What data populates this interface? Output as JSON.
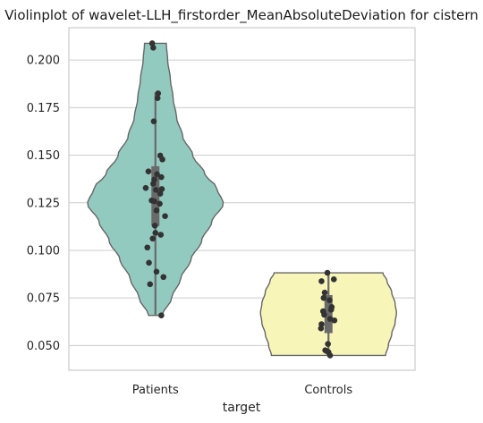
{
  "chart_data": {
    "type": "violin",
    "title": "Violinplot of wavelet-LLH_firstorder_MeanAbsoluteDeviation for cistern",
    "xlabel": "target",
    "ylabel": "",
    "categories": [
      "Patients",
      "Controls"
    ],
    "ylim": [
      0.037,
      0.217
    ],
    "yticks": [
      0.05,
      0.075,
      0.1,
      0.125,
      0.15,
      0.175,
      0.2
    ],
    "ytick_labels": [
      "0.050",
      "0.075",
      "0.100",
      "0.125",
      "0.150",
      "0.175",
      "0.200"
    ],
    "grid": true,
    "colors": {
      "Patients": "#93cac0",
      "Controls": "#f7f6b8",
      "outline": "#666666",
      "point": "#333333",
      "box": "#6a6a6a"
    },
    "groups": [
      {
        "name": "Patients",
        "color": "#93cac0",
        "range": [
          0.0658,
          0.2088
        ],
        "quartiles": [
          0.1128,
          0.1442
        ],
        "median": 0.13,
        "whiskers": [
          0.0658,
          0.183
        ],
        "density": [
          [
            0.0658,
            0.1
          ],
          [
            0.075,
            0.24
          ],
          [
            0.085,
            0.37
          ],
          [
            0.095,
            0.52
          ],
          [
            0.105,
            0.68
          ],
          [
            0.115,
            0.83
          ],
          [
            0.1245,
            1.0
          ],
          [
            0.133,
            0.9
          ],
          [
            0.14,
            0.73
          ],
          [
            0.15,
            0.55
          ],
          [
            0.16,
            0.4
          ],
          [
            0.17,
            0.31
          ],
          [
            0.18,
            0.26
          ],
          [
            0.19,
            0.22
          ],
          [
            0.2,
            0.18
          ],
          [
            0.2088,
            0.16
          ]
        ],
        "points": [
          {
            "y": 0.2088,
            "jitter": -0.06
          },
          {
            "y": 0.2065,
            "jitter": -0.04
          },
          {
            "y": 0.1825,
            "jitter": 0.05
          },
          {
            "y": 0.18,
            "jitter": 0.04
          },
          {
            "y": 0.1678,
            "jitter": -0.03
          },
          {
            "y": 0.1498,
            "jitter": 0.09
          },
          {
            "y": 0.1478,
            "jitter": 0.13
          },
          {
            "y": 0.1415,
            "jitter": -0.13
          },
          {
            "y": 0.14,
            "jitter": 0.03
          },
          {
            "y": 0.1385,
            "jitter": 0.11
          },
          {
            "y": 0.1372,
            "jitter": -0.02
          },
          {
            "y": 0.135,
            "jitter": -0.04
          },
          {
            "y": 0.1328,
            "jitter": -0.18
          },
          {
            "y": 0.1322,
            "jitter": 0.12
          },
          {
            "y": 0.1318,
            "jitter": 0.01
          },
          {
            "y": 0.1298,
            "jitter": 0.09
          },
          {
            "y": 0.1262,
            "jitter": -0.07
          },
          {
            "y": 0.1258,
            "jitter": -0.02
          },
          {
            "y": 0.1245,
            "jitter": 0.08
          },
          {
            "y": 0.121,
            "jitter": 0.02
          },
          {
            "y": 0.118,
            "jitter": 0.18
          },
          {
            "y": 0.113,
            "jitter": -0.01
          },
          {
            "y": 0.1092,
            "jitter": 0.0
          },
          {
            "y": 0.1082,
            "jitter": 0.1
          },
          {
            "y": 0.1062,
            "jitter": -0.05
          },
          {
            "y": 0.1015,
            "jitter": -0.15
          },
          {
            "y": 0.0935,
            "jitter": -0.12
          },
          {
            "y": 0.0888,
            "jitter": 0.02
          },
          {
            "y": 0.086,
            "jitter": 0.15
          },
          {
            "y": 0.0822,
            "jitter": -0.1
          },
          {
            "y": 0.0658,
            "jitter": 0.11
          }
        ]
      },
      {
        "name": "Controls",
        "color": "#f7f6b8",
        "range": [
          0.0448,
          0.0882
        ],
        "quartiles": [
          0.0565,
          0.0765
        ],
        "median": 0.067,
        "whiskers": [
          0.0448,
          0.0882
        ],
        "density": [
          [
            0.0448,
            0.84
          ],
          [
            0.05,
            0.88
          ],
          [
            0.056,
            0.93
          ],
          [
            0.062,
            0.98
          ],
          [
            0.0672,
            1.0
          ],
          [
            0.072,
            0.98
          ],
          [
            0.078,
            0.93
          ],
          [
            0.084,
            0.86
          ],
          [
            0.0882,
            0.8
          ]
        ],
        "points": [
          {
            "y": 0.0882,
            "jitter": -0.02
          },
          {
            "y": 0.0848,
            "jitter": 0.1
          },
          {
            "y": 0.0838,
            "jitter": -0.13
          },
          {
            "y": 0.0778,
            "jitter": -0.07
          },
          {
            "y": 0.075,
            "jitter": -0.09
          },
          {
            "y": 0.0738,
            "jitter": 0.02
          },
          {
            "y": 0.0702,
            "jitter": 0.06
          },
          {
            "y": 0.0688,
            "jitter": 0.05
          },
          {
            "y": 0.068,
            "jitter": -0.1
          },
          {
            "y": 0.0662,
            "jitter": -0.08
          },
          {
            "y": 0.064,
            "jitter": 0.03
          },
          {
            "y": 0.0632,
            "jitter": 0.11
          },
          {
            "y": 0.0612,
            "jitter": -0.13
          },
          {
            "y": 0.059,
            "jitter": -0.14
          },
          {
            "y": 0.0508,
            "jitter": -0.01
          },
          {
            "y": 0.0475,
            "jitter": -0.06
          },
          {
            "y": 0.047,
            "jitter": -0.03
          },
          {
            "y": 0.0465,
            "jitter": 0.0
          },
          {
            "y": 0.0448,
            "jitter": 0.03
          }
        ]
      }
    ]
  }
}
